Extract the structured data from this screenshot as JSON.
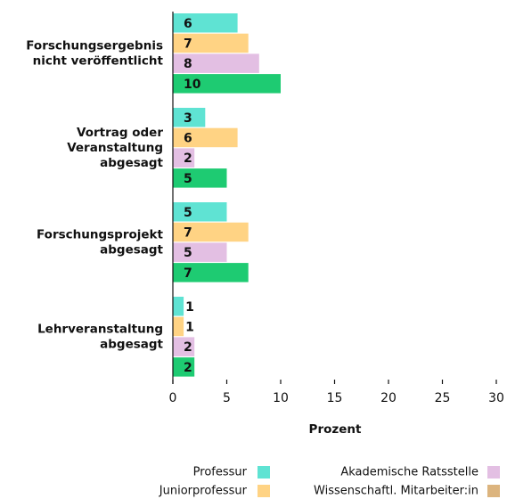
{
  "chart_data": {
    "type": "bar",
    "orientation": "horizontal",
    "categories": [
      "Forschungsergebnis\nnicht veröffentlicht",
      "Vortrag oder\nVeranstaltung\nabgesagt",
      "Forschungsprojekt\nabgesagt",
      "Lehrveranstaltung\nabgesagt"
    ],
    "series": [
      {
        "name": "Professur",
        "color": "#5fe3d3",
        "values": [
          6,
          3,
          5,
          1
        ]
      },
      {
        "name": "Juniorprofessur",
        "color": "#ffd384",
        "values": [
          7,
          6,
          7,
          1
        ]
      },
      {
        "name": "Akademische Ratsstelle",
        "color": "#e3bfe3",
        "values": [
          8,
          2,
          5,
          2
        ]
      },
      {
        "name": "Wissenschaftl. Mitarbeiter:in",
        "color": "#1ecb72",
        "legend_color": "#dcb47e",
        "values": [
          10,
          5,
          7,
          2
        ]
      }
    ],
    "xlabel": "Prozent",
    "xlim": [
      0,
      30
    ],
    "xticks": [
      0,
      5,
      10,
      15,
      20,
      25,
      30
    ]
  }
}
